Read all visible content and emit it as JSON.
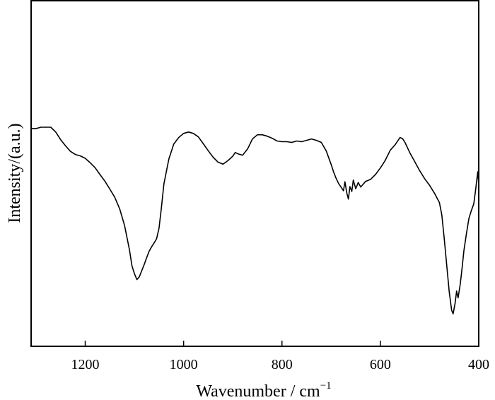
{
  "chart_data": {
    "type": "line",
    "title": "",
    "xlabel": "Wavenumber / cm",
    "xlabel_superscript": "−1",
    "ylabel": "Intensity/(a.u.)",
    "x_reversed": true,
    "xlim": [
      1310,
      400
    ],
    "ylim": [
      0,
      1
    ],
    "grid": false,
    "legend": "none",
    "x_ticks": [
      {
        "value": 1200,
        "label": "1200"
      },
      {
        "value": 1000,
        "label": "1000"
      },
      {
        "value": 800,
        "label": "800"
      },
      {
        "value": 600,
        "label": "600"
      },
      {
        "value": 400,
        "label": "400"
      }
    ],
    "series": [
      {
        "color": "#000000",
        "points": [
          [
            1310,
            0.63
          ],
          [
            1300,
            0.63
          ],
          [
            1290,
            0.634
          ],
          [
            1280,
            0.634
          ],
          [
            1270,
            0.634
          ],
          [
            1260,
            0.62
          ],
          [
            1250,
            0.598
          ],
          [
            1240,
            0.58
          ],
          [
            1230,
            0.564
          ],
          [
            1220,
            0.555
          ],
          [
            1210,
            0.551
          ],
          [
            1200,
            0.544
          ],
          [
            1190,
            0.531
          ],
          [
            1180,
            0.517
          ],
          [
            1170,
            0.497
          ],
          [
            1160,
            0.478
          ],
          [
            1150,
            0.455
          ],
          [
            1140,
            0.431
          ],
          [
            1130,
            0.398
          ],
          [
            1120,
            0.349
          ],
          [
            1110,
            0.279
          ],
          [
            1105,
            0.233
          ],
          [
            1100,
            0.21
          ],
          [
            1095,
            0.193
          ],
          [
            1090,
            0.201
          ],
          [
            1085,
            0.219
          ],
          [
            1080,
            0.237
          ],
          [
            1075,
            0.257
          ],
          [
            1070,
            0.275
          ],
          [
            1065,
            0.288
          ],
          [
            1060,
            0.299
          ],
          [
            1055,
            0.311
          ],
          [
            1050,
            0.342
          ],
          [
            1045,
            0.402
          ],
          [
            1040,
            0.47
          ],
          [
            1030,
            0.542
          ],
          [
            1020,
            0.585
          ],
          [
            1010,
            0.604
          ],
          [
            1000,
            0.616
          ],
          [
            990,
            0.62
          ],
          [
            980,
            0.616
          ],
          [
            970,
            0.606
          ],
          [
            960,
            0.586
          ],
          [
            950,
            0.566
          ],
          [
            940,
            0.547
          ],
          [
            930,
            0.533
          ],
          [
            920,
            0.527
          ],
          [
            910,
            0.537
          ],
          [
            900,
            0.55
          ],
          [
            895,
            0.561
          ],
          [
            890,
            0.557
          ],
          [
            880,
            0.553
          ],
          [
            870,
            0.571
          ],
          [
            860,
            0.6
          ],
          [
            850,
            0.612
          ],
          [
            840,
            0.612
          ],
          [
            830,
            0.608
          ],
          [
            820,
            0.602
          ],
          [
            810,
            0.594
          ],
          [
            800,
            0.592
          ],
          [
            790,
            0.592
          ],
          [
            780,
            0.59
          ],
          [
            770,
            0.594
          ],
          [
            760,
            0.592
          ],
          [
            750,
            0.596
          ],
          [
            740,
            0.6
          ],
          [
            730,
            0.596
          ],
          [
            720,
            0.59
          ],
          [
            710,
            0.565
          ],
          [
            700,
            0.526
          ],
          [
            695,
            0.504
          ],
          [
            690,
            0.486
          ],
          [
            685,
            0.471
          ],
          [
            680,
            0.461
          ],
          [
            675,
            0.45
          ],
          [
            672,
            0.476
          ],
          [
            668,
            0.442
          ],
          [
            665,
            0.426
          ],
          [
            662,
            0.462
          ],
          [
            658,
            0.448
          ],
          [
            655,
            0.481
          ],
          [
            650,
            0.456
          ],
          [
            645,
            0.474
          ],
          [
            640,
            0.461
          ],
          [
            630,
            0.477
          ],
          [
            620,
            0.483
          ],
          [
            610,
            0.497
          ],
          [
            600,
            0.516
          ],
          [
            590,
            0.538
          ],
          [
            580,
            0.567
          ],
          [
            570,
            0.583
          ],
          [
            560,
            0.604
          ],
          [
            555,
            0.601
          ],
          [
            550,
            0.59
          ],
          [
            540,
            0.56
          ],
          [
            530,
            0.534
          ],
          [
            520,
            0.508
          ],
          [
            510,
            0.485
          ],
          [
            500,
            0.466
          ],
          [
            490,
            0.443
          ],
          [
            480,
            0.416
          ],
          [
            475,
            0.38
          ],
          [
            470,
            0.31
          ],
          [
            465,
            0.233
          ],
          [
            460,
            0.157
          ],
          [
            455,
            0.104
          ],
          [
            452,
            0.094
          ],
          [
            448,
            0.125
          ],
          [
            445,
            0.16
          ],
          [
            442,
            0.14
          ],
          [
            438,
            0.176
          ],
          [
            435,
            0.212
          ],
          [
            430,
            0.278
          ],
          [
            425,
            0.326
          ],
          [
            420,
            0.37
          ],
          [
            415,
            0.393
          ],
          [
            410,
            0.412
          ],
          [
            406,
            0.456
          ],
          [
            402,
            0.505
          ],
          [
            400,
            0.468
          ]
        ]
      }
    ]
  }
}
